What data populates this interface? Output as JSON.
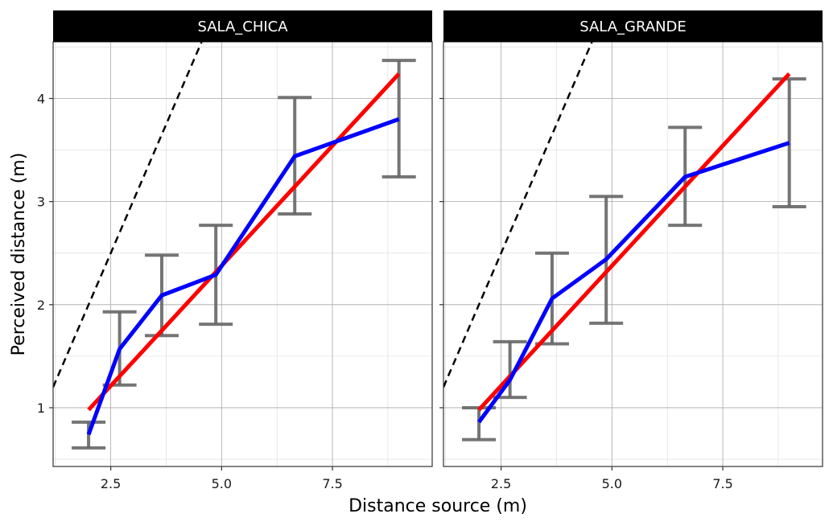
{
  "chart_data": {
    "type": "line",
    "xlabel": "Distance source (m)",
    "ylabel": "Perceived distance (m)",
    "xlim": [
      1.2,
      9.75
    ],
    "ylim": [
      0.43,
      4.55
    ],
    "x_ticks": [
      2.5,
      5.0,
      7.5
    ],
    "x_tick_labels": [
      "2.5",
      "5.0",
      "7.5"
    ],
    "y_ticks": [
      1,
      2,
      3,
      4
    ],
    "y_tick_labels": [
      "1",
      "2",
      "3",
      "4"
    ],
    "grid": true,
    "colors": {
      "observed": "#0000ff",
      "fit": "#ff0000",
      "identity": "#000000",
      "errorbar": "#666666",
      "strip_bg": "#000000",
      "strip_text": "#ffffff"
    },
    "panels": [
      {
        "label": "SALA_CHICA",
        "x": [
          2.0,
          2.7,
          3.65,
          4.87,
          6.65,
          9.0
        ],
        "mean": [
          0.74,
          1.57,
          2.09,
          2.29,
          3.44,
          3.8
        ],
        "lower": [
          0.61,
          1.22,
          1.7,
          1.81,
          2.88,
          3.24
        ],
        "upper": [
          0.86,
          1.93,
          2.48,
          2.77,
          4.01,
          4.37
        ],
        "fit_line": {
          "x": [
            2.0,
            9.0
          ],
          "y": [
            0.98,
            4.24
          ]
        },
        "identity_line": {
          "x": [
            1.2,
            4.55
          ],
          "y": [
            1.2,
            4.55
          ]
        }
      },
      {
        "label": "SALA_GRANDE",
        "x": [
          2.0,
          2.7,
          3.65,
          4.87,
          6.65,
          9.0
        ],
        "mean": [
          0.86,
          1.27,
          2.06,
          2.44,
          3.24,
          3.57
        ],
        "lower": [
          0.69,
          1.1,
          1.62,
          1.82,
          2.77,
          2.95
        ],
        "upper": [
          1.0,
          1.64,
          2.5,
          3.05,
          3.72,
          4.19
        ],
        "fit_line": {
          "x": [
            2.0,
            9.0
          ],
          "y": [
            0.98,
            4.24
          ]
        },
        "identity_line": {
          "x": [
            1.2,
            4.55
          ],
          "y": [
            1.2,
            4.55
          ]
        }
      }
    ]
  }
}
